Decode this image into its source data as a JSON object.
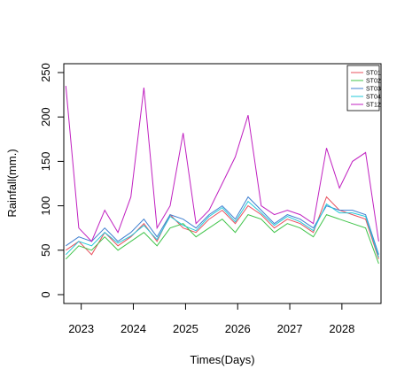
{
  "chart_data": {
    "type": "line",
    "title": "",
    "xlabel": "Times(Days)",
    "ylabel": "Rainfall(mm.)",
    "xlim": [
      "2022-09-01",
      "2028-10-01"
    ],
    "ylim": [
      0,
      250
    ],
    "x_ticks": [
      "2023",
      "2024",
      "2025",
      "2026",
      "2027",
      "2028"
    ],
    "y_ticks": [
      0,
      50,
      100,
      150,
      200,
      250
    ],
    "grid": false,
    "legend_position": "top-right",
    "x_dates": [
      "2022-09-15",
      "2022-12-15",
      "2023-03-15",
      "2023-06-15",
      "2023-09-15",
      "2023-12-15",
      "2024-03-15",
      "2024-06-15",
      "2024-09-15",
      "2024-12-15",
      "2025-03-15",
      "2025-06-15",
      "2025-09-15",
      "2025-12-15",
      "2026-03-15",
      "2026-06-15",
      "2026-09-15",
      "2026-12-15",
      "2027-03-15",
      "2027-06-15",
      "2027-09-15",
      "2027-12-15",
      "2028-03-15",
      "2028-06-15",
      "2028-09-15"
    ],
    "series": [
      {
        "name": "ST01",
        "color": "#e8515e",
        "values": [
          50,
          60,
          45,
          70,
          55,
          65,
          80,
          60,
          90,
          75,
          70,
          85,
          95,
          80,
          100,
          90,
          75,
          85,
          80,
          70,
          110,
          95,
          90,
          85,
          40
        ]
      },
      {
        "name": "ST02",
        "color": "#40c44a",
        "values": [
          40,
          55,
          50,
          65,
          50,
          60,
          70,
          55,
          75,
          80,
          65,
          75,
          85,
          70,
          90,
          85,
          70,
          80,
          75,
          65,
          90,
          85,
          80,
          75,
          35
        ]
      },
      {
        "name": "ST03",
        "color": "#3f7fd0",
        "values": [
          55,
          65,
          60,
          75,
          60,
          70,
          85,
          65,
          90,
          85,
          75,
          90,
          100,
          85,
          110,
          95,
          80,
          90,
          85,
          75,
          100,
          95,
          95,
          90,
          45
        ]
      },
      {
        "name": "ST04",
        "color": "#22c8d8",
        "values": [
          45,
          60,
          55,
          70,
          58,
          66,
          78,
          62,
          88,
          78,
          72,
          88,
          98,
          82,
          105,
          92,
          78,
          88,
          82,
          72,
          102,
          92,
          92,
          88,
          42
        ]
      },
      {
        "name": "ST12",
        "color": "#c020c0",
        "values": [
          235,
          75,
          60,
          95,
          70,
          110,
          233,
          75,
          100,
          182,
          80,
          95,
          125,
          155,
          202,
          100,
          90,
          95,
          90,
          80,
          165,
          120,
          150,
          160,
          60
        ]
      }
    ]
  }
}
